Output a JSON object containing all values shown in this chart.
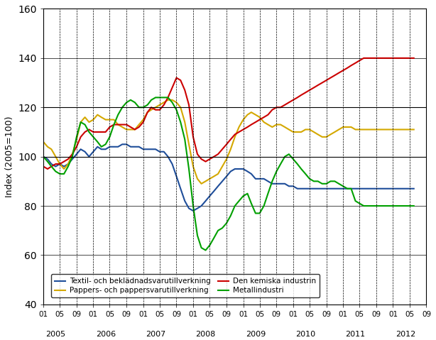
{
  "title": "",
  "ylabel": "Index (2005=100)",
  "ylim": [
    40,
    160
  ],
  "yticks": [
    40,
    60,
    80,
    100,
    120,
    140,
    160
  ],
  "bg_color": "#ffffff",
  "grid_color": "#000000",
  "legend": [
    {
      "label": "Textil- och beklädnadsvarutillverkning",
      "color": "#1f4e9a"
    },
    {
      "label": "Pappers- och pappersvarutillverkning",
      "color": "#d4a800"
    },
    {
      "label": "Den kemiska industrin",
      "color": "#cc0000"
    },
    {
      "label": "Metallindustri",
      "color": "#00a000"
    }
  ],
  "series": {
    "textil": [
      100,
      99,
      97,
      96,
      97,
      96,
      97,
      99,
      101,
      103,
      102,
      100,
      102,
      104,
      103,
      103,
      104,
      104,
      104,
      105,
      105,
      104,
      104,
      104,
      103,
      103,
      103,
      103,
      102,
      102,
      100,
      97,
      92,
      87,
      82,
      79,
      78,
      79,
      80,
      82,
      84,
      86,
      88,
      90,
      92,
      94,
      95,
      95,
      95,
      94,
      93,
      91,
      91,
      91,
      90,
      89,
      89,
      89,
      89,
      88,
      88,
      87,
      87,
      87,
      87,
      87,
      87,
      87,
      87,
      87,
      87,
      87,
      87,
      87,
      87,
      87,
      87,
      87,
      87,
      87,
      87,
      87,
      87,
      87,
      87,
      87,
      87,
      87,
      87,
      87
    ],
    "pappers": [
      106,
      104,
      103,
      100,
      97,
      95,
      97,
      101,
      107,
      114,
      116,
      114,
      115,
      117,
      116,
      115,
      115,
      115,
      113,
      112,
      111,
      111,
      111,
      113,
      115,
      118,
      119,
      120,
      121,
      122,
      123,
      123,
      122,
      120,
      114,
      105,
      96,
      91,
      89,
      90,
      91,
      92,
      93,
      96,
      99,
      103,
      108,
      112,
      115,
      117,
      118,
      117,
      116,
      114,
      113,
      112,
      113,
      113,
      112,
      111,
      110,
      110,
      110,
      111,
      111,
      110,
      109,
      108,
      108,
      109,
      110,
      111,
      112,
      112,
      112,
      111,
      111,
      111,
      111,
      111,
      111,
      111,
      111,
      111,
      111,
      111,
      111,
      111,
      111,
      111
    ],
    "kemisk": [
      96,
      95,
      96,
      97,
      97,
      98,
      99,
      101,
      104,
      108,
      110,
      111,
      110,
      110,
      110,
      110,
      112,
      113,
      113,
      113,
      113,
      112,
      111,
      112,
      114,
      118,
      120,
      119,
      119,
      121,
      124,
      128,
      132,
      131,
      127,
      121,
      108,
      101,
      99,
      98,
      99,
      100,
      101,
      103,
      105,
      107,
      109,
      110,
      111,
      112,
      113,
      114,
      115,
      116,
      117,
      119,
      120,
      120,
      121,
      122,
      123,
      124,
      125,
      126,
      127,
      128,
      129,
      130,
      131,
      132,
      133,
      134,
      135,
      136,
      137,
      138,
      139,
      140,
      140,
      140,
      140,
      140,
      140,
      140,
      140,
      140,
      140,
      140,
      140,
      140
    ],
    "metall": [
      100,
      98,
      96,
      94,
      93,
      93,
      96,
      100,
      108,
      114,
      113,
      110,
      108,
      106,
      104,
      105,
      108,
      113,
      117,
      120,
      122,
      123,
      122,
      120,
      120,
      121,
      123,
      124,
      124,
      124,
      124,
      122,
      119,
      114,
      107,
      95,
      80,
      68,
      63,
      62,
      64,
      67,
      70,
      71,
      73,
      76,
      80,
      82,
      84,
      85,
      81,
      77,
      77,
      80,
      85,
      90,
      94,
      97,
      100,
      101,
      99,
      97,
      95,
      93,
      91,
      90,
      90,
      89,
      89,
      90,
      90,
      89,
      88,
      87,
      87,
      82,
      81,
      80,
      80,
      80,
      80,
      80,
      80,
      80,
      80,
      80,
      80,
      80,
      80,
      80
    ]
  },
  "n_points": 90,
  "start_year": 2005,
  "start_month": 1
}
